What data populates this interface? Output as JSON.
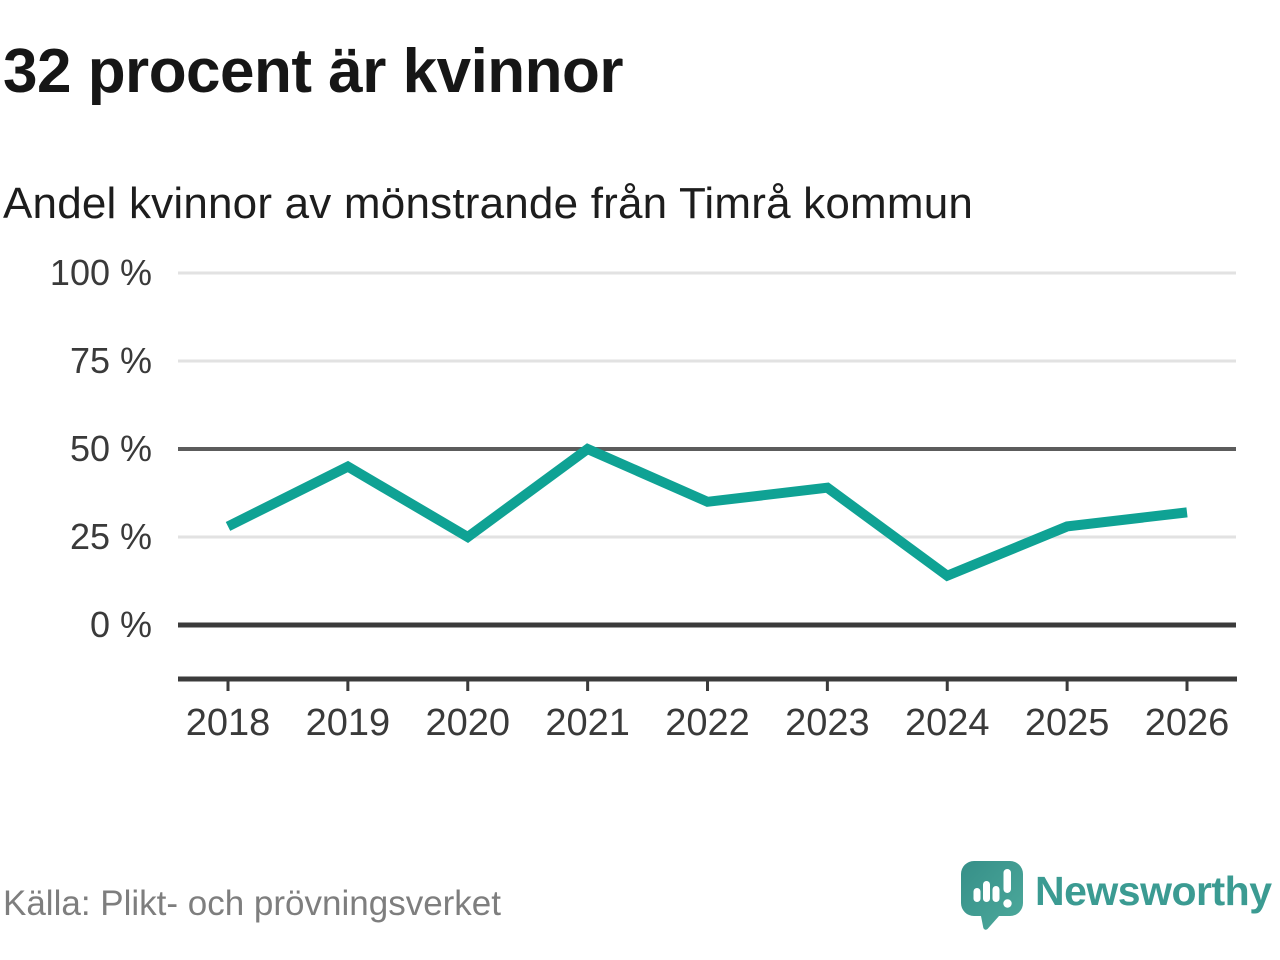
{
  "header": {
    "title": "32 procent är kvinnor",
    "subtitle": "Andel kvinnor av mönstrande från Timrå kommun"
  },
  "chart_data": {
    "type": "line",
    "title": "32 procent är kvinnor",
    "subtitle": "Andel kvinnor av mönstrande från Timrå kommun",
    "categories": [
      "2018",
      "2019",
      "2020",
      "2021",
      "2022",
      "2023",
      "2024",
      "2025",
      "2026"
    ],
    "series": [
      {
        "name": "Andel kvinnor av mönstrande",
        "values": [
          28,
          45,
          25,
          50,
          35,
          39,
          14,
          28,
          32
        ]
      }
    ],
    "unit": "%",
    "ylim": [
      0,
      100
    ],
    "y_ticks": [
      0,
      25,
      50,
      75,
      100
    ],
    "y_tick_labels": [
      "0 %",
      "25 %",
      "50 %",
      "75 %",
      "100 %"
    ],
    "grid": "horizontal",
    "legend": "none",
    "line_color": "#0fa294",
    "emphasized_gridlines": [
      0,
      50
    ]
  },
  "footer": {
    "source": "Källa: Plikt- och prövningsverket",
    "brand": "Newsworthy",
    "brand_color": "#3b9b92",
    "brand_icon": "speech-bubble-bar-chart-exclamation"
  }
}
